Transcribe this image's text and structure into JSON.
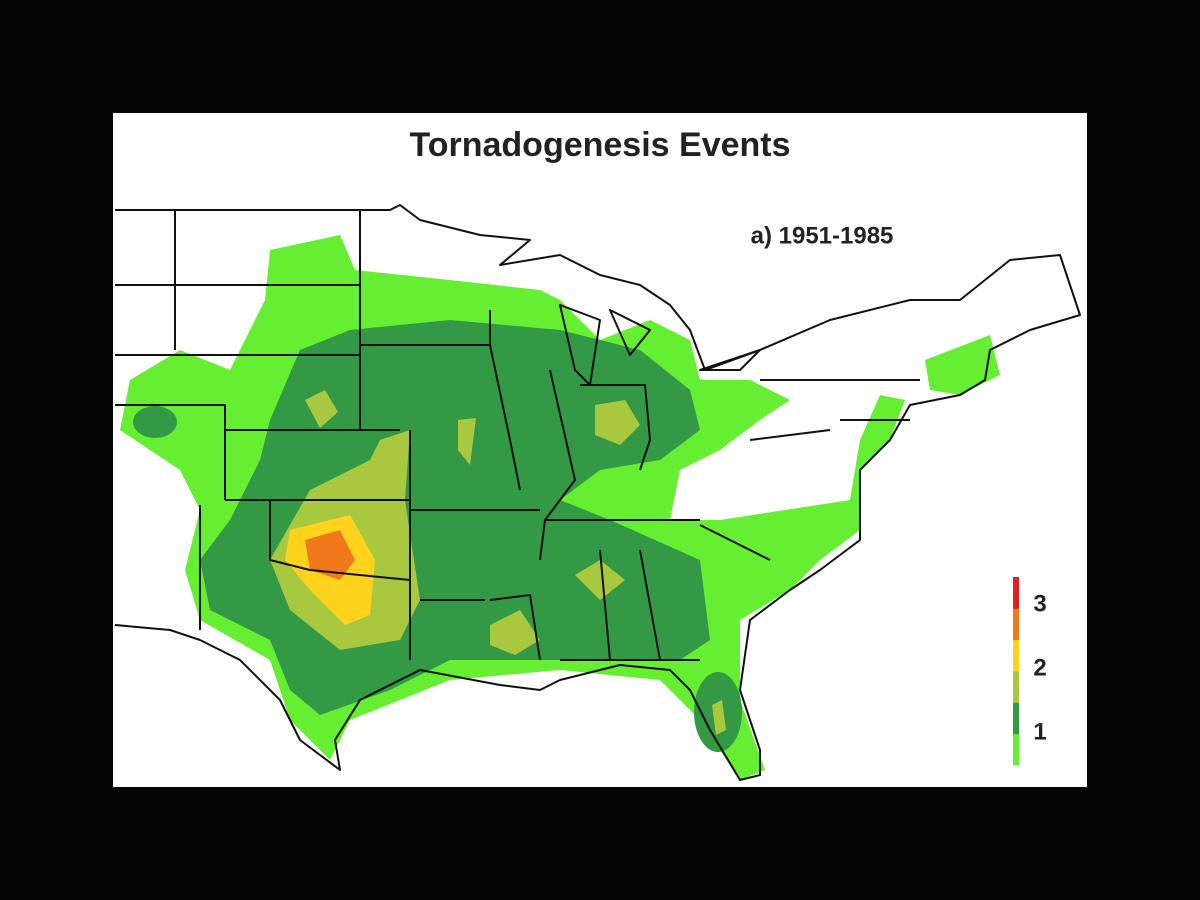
{
  "title": "Tornadogenesis Events",
  "period": "a) 1951-1985",
  "legend": {
    "ticks": [
      1,
      2,
      3
    ],
    "colors": [
      "#66ee33",
      "#339944",
      "#a8c840",
      "#ffd21e",
      "#f07a1a",
      "#e02020"
    ]
  }
}
